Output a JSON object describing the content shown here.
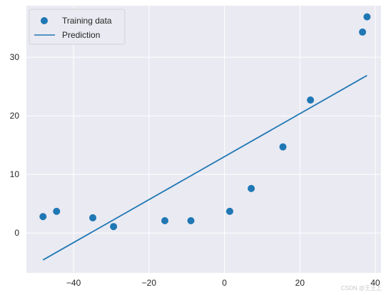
{
  "chart_data": {
    "type": "scatter",
    "title": "",
    "xlabel": "",
    "ylabel": "",
    "xlim": [
      -52.5,
      41.5
    ],
    "ylim": [
      -6.8,
      38.8
    ],
    "x_ticks": [
      -40,
      -20,
      0,
      20,
      40
    ],
    "y_ticks": [
      0,
      10,
      20,
      30
    ],
    "x_tick_labels": [
      "−40",
      "−20",
      "0",
      "20",
      "40"
    ],
    "y_tick_labels": [
      "0",
      "10",
      "20",
      "30"
    ],
    "grid": true,
    "legend_placement": "upper-left",
    "series": [
      {
        "name": "Training data",
        "kind": "scatter",
        "color": "#1f77b4",
        "points": [
          [
            -48.1,
            2.8
          ],
          [
            -44.5,
            3.7
          ],
          [
            -34.9,
            2.6
          ],
          [
            -29.4,
            1.1
          ],
          [
            -15.8,
            2.1
          ],
          [
            -8.9,
            2.1
          ],
          [
            1.4,
            3.7
          ],
          [
            7.1,
            7.6
          ],
          [
            15.5,
            14.7
          ],
          [
            22.8,
            22.7
          ],
          [
            36.6,
            34.3
          ],
          [
            37.8,
            36.9
          ]
        ]
      },
      {
        "name": "Prediction",
        "kind": "line",
        "color": "#1f77b4",
        "points": [
          [
            -48.1,
            -4.6
          ],
          [
            37.8,
            26.9
          ]
        ]
      }
    ],
    "background_color": "#eaeaf2",
    "grid_color": "#ffffff"
  },
  "watermark": "CSDN @王王上"
}
